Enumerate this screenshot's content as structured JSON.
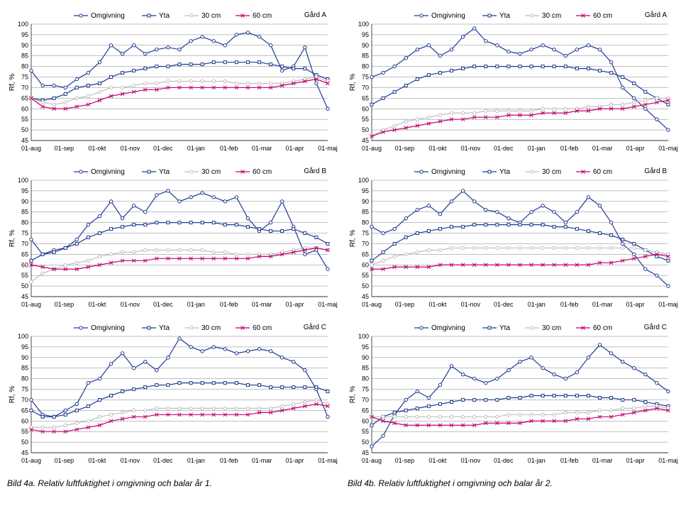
{
  "global": {
    "ylabel": "Rf, %",
    "x_labels": [
      "01-aug",
      "01-sep",
      "01-okt",
      "01-nov",
      "01-dec",
      "01-jan",
      "01-feb",
      "01-mar",
      "01-apr",
      "01-maj"
    ],
    "y_min": 45,
    "y_max": 100,
    "y_tick_step": 5,
    "legend_items": [
      {
        "label": "Omgivning",
        "color": "#1f3a93",
        "marker": "circle"
      },
      {
        "label": "Yta",
        "color": "#1f3a93",
        "marker": "square"
      },
      {
        "label": "30 cm",
        "color": "#bfbfbf",
        "marker": "circle"
      },
      {
        "label": "60 cm",
        "color": "#c0006c",
        "marker": "x"
      }
    ],
    "grid_color": "#808080",
    "bg": "#ffffff",
    "caption_left": "Bild 4a. Relativ luftfuktighet i omgivning och balar år 1.",
    "caption_right": "Bild 4b. Relativ luftfuktighet i omgivning och balar år 2."
  },
  "panels": [
    {
      "title": "Gård A",
      "col": 0,
      "series": {
        "omg": [
          78,
          71,
          71,
          70,
          74,
          77,
          82,
          90,
          86,
          90,
          86,
          88,
          89,
          88,
          92,
          94,
          92,
          90,
          95,
          96,
          94,
          90,
          78,
          80,
          89,
          72,
          60
        ],
        "yta": [
          65,
          64,
          65,
          67,
          70,
          71,
          72,
          75,
          77,
          78,
          79,
          80,
          80,
          81,
          81,
          81,
          82,
          82,
          82,
          82,
          82,
          81,
          80,
          79,
          79,
          76,
          74
        ],
        "cm30": [
          65,
          63,
          62,
          63,
          65,
          66,
          68,
          70,
          70,
          71,
          72,
          72,
          73,
          73,
          73,
          73,
          73,
          73,
          72,
          72,
          72,
          72,
          72,
          73,
          74,
          75,
          73
        ],
        "cm60": [
          65,
          61,
          60,
          60,
          61,
          62,
          64,
          66,
          67,
          68,
          69,
          69,
          70,
          70,
          70,
          70,
          70,
          70,
          70,
          70,
          70,
          70,
          71,
          72,
          73,
          74,
          72
        ]
      }
    },
    {
      "title": "Gård A",
      "col": 1,
      "series": {
        "omg": [
          75,
          77,
          80,
          84,
          88,
          90,
          85,
          88,
          94,
          98,
          92,
          90,
          87,
          86,
          88,
          90,
          88,
          85,
          88,
          90,
          88,
          82,
          70,
          65,
          60,
          55,
          50
        ],
        "yta": [
          62,
          65,
          68,
          71,
          74,
          76,
          77,
          78,
          79,
          80,
          80,
          80,
          80,
          80,
          80,
          80,
          80,
          80,
          79,
          79,
          78,
          77,
          75,
          72,
          68,
          65,
          62
        ],
        "cm30": [
          47,
          50,
          52,
          54,
          55,
          56,
          57,
          58,
          58,
          58,
          59,
          59,
          59,
          59,
          59,
          60,
          60,
          60,
          60,
          61,
          61,
          62,
          62,
          63,
          64,
          65,
          65
        ],
        "cm60": [
          47,
          49,
          50,
          51,
          52,
          53,
          54,
          55,
          55,
          56,
          56,
          56,
          57,
          57,
          57,
          58,
          58,
          58,
          59,
          59,
          60,
          60,
          60,
          61,
          62,
          63,
          64
        ]
      }
    },
    {
      "title": "Gård B",
      "col": 0,
      "series": {
        "omg": [
          72,
          65,
          67,
          68,
          72,
          79,
          83,
          90,
          82,
          88,
          85,
          93,
          95,
          90,
          92,
          94,
          92,
          90,
          92,
          82,
          76,
          80,
          90,
          78,
          65,
          67,
          58
        ],
        "yta": [
          62,
          65,
          66,
          68,
          70,
          73,
          75,
          77,
          78,
          79,
          79,
          80,
          80,
          80,
          80,
          80,
          80,
          79,
          79,
          78,
          77,
          76,
          76,
          77,
          75,
          73,
          70
        ],
        "cm30": [
          52,
          56,
          58,
          60,
          61,
          62,
          64,
          65,
          66,
          66,
          67,
          67,
          67,
          67,
          67,
          67,
          66,
          66,
          65,
          65,
          65,
          65,
          66,
          67,
          68,
          68,
          67
        ],
        "cm60": [
          60,
          59,
          58,
          58,
          58,
          59,
          60,
          61,
          62,
          62,
          62,
          63,
          63,
          63,
          63,
          63,
          63,
          63,
          63,
          63,
          64,
          64,
          65,
          66,
          67,
          68,
          67
        ]
      }
    },
    {
      "title": "Gård B",
      "col": 1,
      "series": {
        "omg": [
          78,
          75,
          77,
          82,
          86,
          88,
          84,
          90,
          95,
          90,
          86,
          85,
          82,
          80,
          85,
          88,
          85,
          80,
          85,
          92,
          88,
          80,
          70,
          65,
          58,
          55,
          50
        ],
        "yta": [
          62,
          66,
          70,
          73,
          75,
          76,
          77,
          78,
          78,
          79,
          79,
          79,
          79,
          79,
          79,
          79,
          78,
          78,
          77,
          76,
          75,
          74,
          72,
          70,
          67,
          64,
          62
        ],
        "cm30": [
          60,
          62,
          64,
          65,
          66,
          67,
          67,
          68,
          68,
          68,
          68,
          68,
          68,
          68,
          68,
          68,
          68,
          68,
          68,
          68,
          68,
          68,
          68,
          68,
          67,
          66,
          65
        ],
        "cm60": [
          58,
          58,
          59,
          59,
          59,
          59,
          60,
          60,
          60,
          60,
          60,
          60,
          60,
          60,
          60,
          60,
          60,
          60,
          60,
          60,
          61,
          61,
          62,
          63,
          64,
          65,
          64
        ]
      }
    },
    {
      "title": "Gård C",
      "col": 0,
      "series": {
        "omg": [
          70,
          63,
          62,
          65,
          68,
          78,
          80,
          87,
          92,
          85,
          88,
          84,
          90,
          99,
          95,
          93,
          95,
          94,
          92,
          93,
          94,
          93,
          90,
          88,
          84,
          75,
          62
        ],
        "yta": [
          65,
          62,
          62,
          63,
          65,
          67,
          70,
          72,
          74,
          75,
          76,
          77,
          77,
          78,
          78,
          78,
          78,
          78,
          78,
          77,
          77,
          76,
          76,
          76,
          76,
          76,
          74
        ],
        "cm30": [
          57,
          57,
          57,
          58,
          59,
          60,
          62,
          63,
          64,
          65,
          65,
          66,
          66,
          66,
          66,
          66,
          66,
          66,
          66,
          66,
          66,
          66,
          67,
          68,
          69,
          70,
          68
        ],
        "cm60": [
          56,
          55,
          55,
          55,
          56,
          57,
          58,
          60,
          61,
          62,
          62,
          63,
          63,
          63,
          63,
          63,
          63,
          63,
          63,
          63,
          64,
          64,
          65,
          66,
          67,
          68,
          67
        ]
      }
    },
    {
      "title": "Gård C",
      "col": 1,
      "series": {
        "omg": [
          48,
          53,
          63,
          70,
          74,
          71,
          77,
          86,
          82,
          80,
          78,
          80,
          84,
          88,
          90,
          85,
          82,
          80,
          83,
          90,
          96,
          92,
          88,
          85,
          82,
          78,
          74
        ],
        "yta": [
          58,
          62,
          64,
          65,
          66,
          67,
          68,
          69,
          70,
          70,
          70,
          70,
          71,
          71,
          72,
          72,
          72,
          72,
          72,
          72,
          71,
          71,
          70,
          70,
          69,
          68,
          67
        ],
        "cm30": [
          62,
          62,
          62,
          62,
          62,
          62,
          62,
          62,
          62,
          62,
          62,
          62,
          63,
          63,
          63,
          63,
          63,
          64,
          64,
          64,
          65,
          65,
          66,
          66,
          67,
          67,
          66
        ],
        "cm60": [
          62,
          60,
          59,
          58,
          58,
          58,
          58,
          58,
          58,
          58,
          59,
          59,
          59,
          59,
          60,
          60,
          60,
          60,
          61,
          61,
          62,
          62,
          63,
          64,
          65,
          66,
          65
        ]
      }
    }
  ]
}
